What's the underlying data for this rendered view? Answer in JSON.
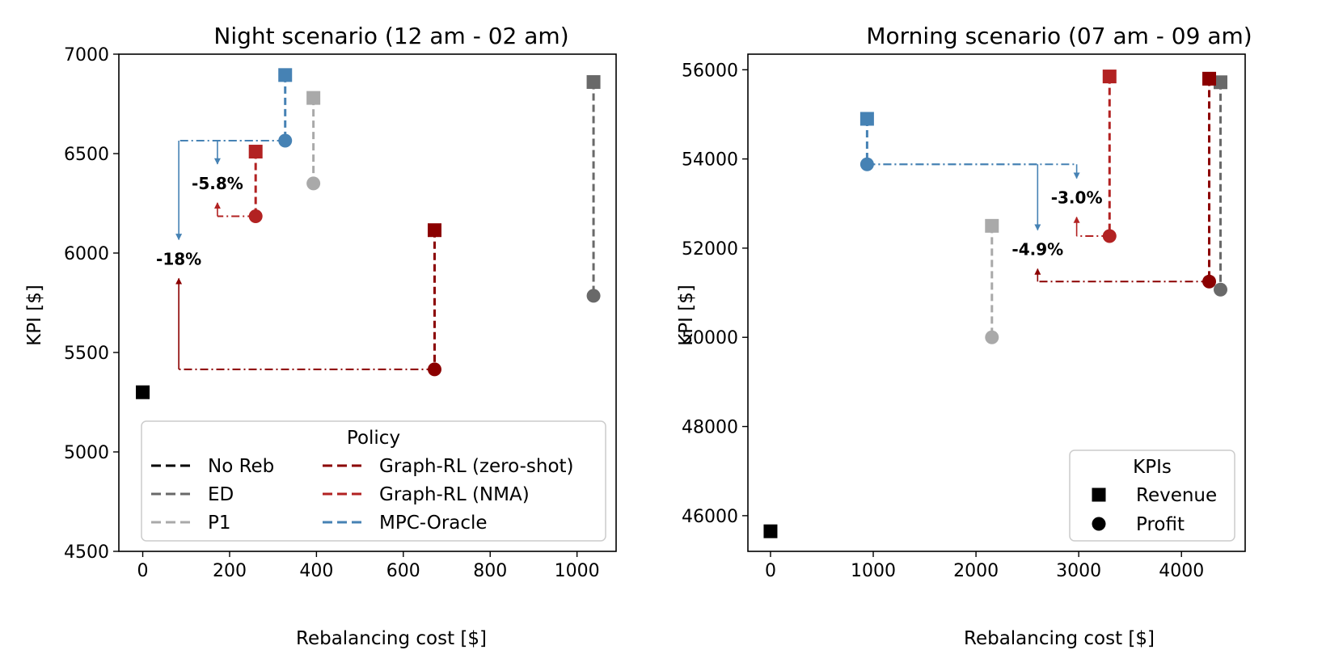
{
  "colors": {
    "No Reb": "#000000",
    "ED": "#696969",
    "P1": "#a9a9a9",
    "Graph-RL (zero-shot)": "#8b0000",
    "Graph-RL (NMA)": "#b22222",
    "MPC-Oracle": "#4682b4"
  },
  "chart_data": [
    {
      "type": "scatter",
      "title": "Night scenario (12 am - 02 am)",
      "xlabel": "Rebalancing cost [$]",
      "ylabel": "KPI [$]",
      "xlim": [
        -55,
        1090
      ],
      "ylim": [
        4500,
        7000
      ],
      "xticks": [
        0,
        200,
        400,
        600,
        800,
        1000
      ],
      "yticks": [
        4500,
        5000,
        5500,
        6000,
        6500,
        7000
      ],
      "points": [
        {
          "policy": "No Reb",
          "cost": 0,
          "revenue": 5300,
          "profit": null
        },
        {
          "policy": "ED",
          "cost": 1038,
          "revenue": 6860,
          "profit": 5785
        },
        {
          "policy": "P1",
          "cost": 393,
          "revenue": 6780,
          "profit": 6350
        },
        {
          "policy": "Graph-RL (zero-shot)",
          "cost": 672,
          "revenue": 6115,
          "profit": 5415
        },
        {
          "policy": "Graph-RL (NMA)",
          "cost": 260,
          "revenue": 6510,
          "profit": 6185
        },
        {
          "policy": "MPC-Oracle",
          "cost": 328,
          "revenue": 6895,
          "profit": 6565
        }
      ],
      "annotations": [
        {
          "text": "-18%",
          "from": "Graph-RL (zero-shot)",
          "to": "MPC-Oracle",
          "arrow_x": 83,
          "text_pos": [
            83,
            5970
          ]
        },
        {
          "text": "-5.8%",
          "from": "Graph-RL (NMA)",
          "to": "MPC-Oracle",
          "arrow_x": 172,
          "text_pos": [
            172,
            6350
          ]
        }
      ],
      "legend": {
        "title": "Policy",
        "position": "lower-right",
        "columns": [
          [
            "No Reb",
            "ED",
            "P1"
          ],
          [
            "Graph-RL (zero-shot)",
            "Graph-RL (NMA)",
            "MPC-Oracle"
          ]
        ]
      }
    },
    {
      "type": "scatter",
      "title": "Morning scenario (07 am - 09 am)",
      "xlabel": "Rebalancing cost [$]",
      "ylabel": "KPI [$]",
      "xlim": [
        -220,
        4620
      ],
      "ylim": [
        45200,
        56350
      ],
      "xticks": [
        0,
        1000,
        2000,
        3000,
        4000
      ],
      "yticks": [
        46000,
        48000,
        50000,
        52000,
        54000,
        56000
      ],
      "points": [
        {
          "policy": "No Reb",
          "cost": 0,
          "revenue": 45650,
          "profit": null
        },
        {
          "policy": "ED",
          "cost": 4380,
          "revenue": 55720,
          "profit": 51070
        },
        {
          "policy": "P1",
          "cost": 2155,
          "revenue": 52500,
          "profit": 50000
        },
        {
          "policy": "Graph-RL (zero-shot)",
          "cost": 4270,
          "revenue": 55800,
          "profit": 51250
        },
        {
          "policy": "Graph-RL (NMA)",
          "cost": 3300,
          "revenue": 55850,
          "profit": 52270
        },
        {
          "policy": "MPC-Oracle",
          "cost": 940,
          "revenue": 54900,
          "profit": 53880
        }
      ],
      "annotations": [
        {
          "text": "-4.9%",
          "from": "Graph-RL (zero-shot)",
          "to": "MPC-Oracle",
          "arrow_x": 2600,
          "text_pos": [
            2600,
            51970
          ]
        },
        {
          "text": "-3.0%",
          "from": "Graph-RL (NMA)",
          "to": "MPC-Oracle",
          "arrow_x": 2980,
          "text_pos": [
            2980,
            53130
          ]
        }
      ],
      "legend": {
        "title": "KPIs",
        "position": "lower-right",
        "items": [
          {
            "label": "Revenue",
            "marker": "square"
          },
          {
            "label": "Profit",
            "marker": "circle"
          }
        ]
      }
    }
  ]
}
